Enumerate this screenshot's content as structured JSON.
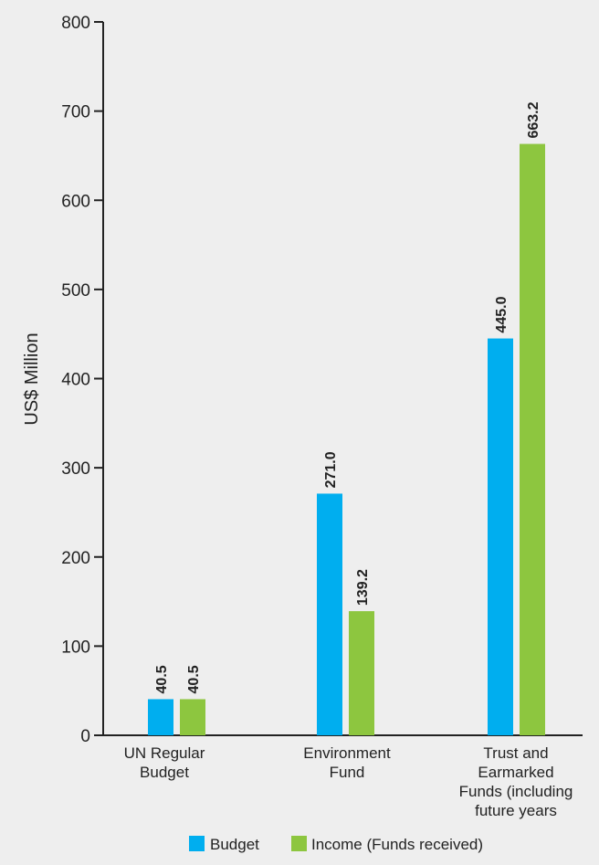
{
  "chart_data": {
    "type": "bar",
    "categories": [
      [
        "UN Regular",
        "Budget"
      ],
      [
        "Environment",
        "Fund"
      ],
      [
        "Trust and",
        "Earmarked",
        "Funds (including",
        "future years"
      ]
    ],
    "series": [
      {
        "name": "Budget",
        "color": "#00aeef",
        "values": [
          40.5,
          271.0,
          445.0
        ],
        "labels": [
          "40.5",
          "271.0",
          "445.0"
        ]
      },
      {
        "name": "Income (Funds received)",
        "color": "#8dc63f",
        "values": [
          40.5,
          139.2,
          663.2
        ],
        "labels": [
          "40.5",
          "139.2",
          "663.2"
        ]
      }
    ],
    "ylabel": "US$ Million",
    "xlabel": "",
    "ylim": [
      0,
      800
    ],
    "yticks": [
      0,
      100,
      200,
      300,
      400,
      500,
      600,
      700,
      800
    ],
    "legend_position": "bottom",
    "grid": false
  }
}
